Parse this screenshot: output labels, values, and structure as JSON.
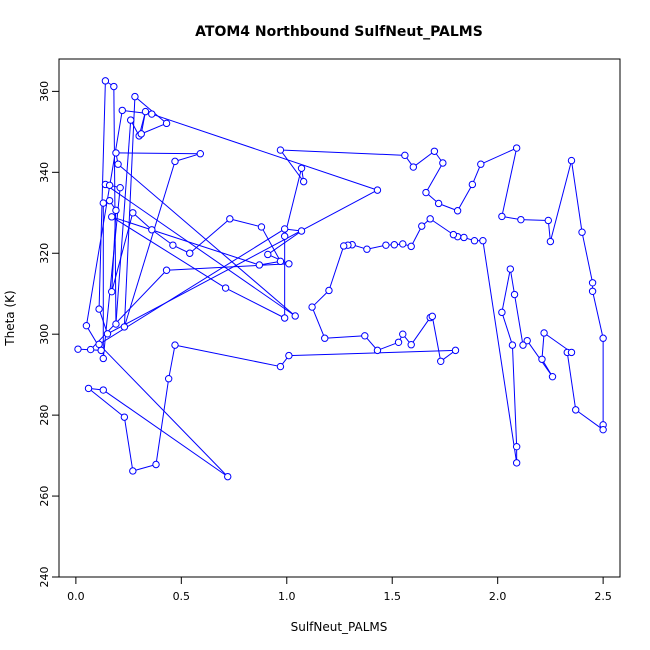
{
  "chart_data": {
    "type": "line",
    "title": "ATOM4 Northbound SulfNeut_PALMS",
    "xlabel": "SulfNeut_PALMS",
    "ylabel": "Theta (K)",
    "xlim": [
      -0.08,
      2.58
    ],
    "ylim": [
      240,
      368
    ],
    "x_ticks": [
      "0.0",
      "0.5",
      "1.0",
      "1.5",
      "2.0",
      "2.5"
    ],
    "y_ticks": [
      "240",
      "260",
      "280",
      "300",
      "320",
      "340",
      "360"
    ],
    "series_color": "#0000ff",
    "markers": "open-circle",
    "points": [
      [
        0.01,
        296.3
      ],
      [
        0.05,
        302.1
      ],
      [
        0.07,
        296.2
      ],
      [
        0.11,
        306.2
      ],
      [
        0.12,
        296.0
      ],
      [
        0.13,
        294.0
      ],
      [
        0.15,
        300.1
      ],
      [
        0.17,
        310.5
      ],
      [
        0.19,
        302.5
      ],
      [
        0.23,
        301.8
      ],
      [
        0.14,
        362.6
      ],
      [
        0.18,
        361.2
      ],
      [
        0.22,
        355.3
      ],
      [
        0.28,
        358.7
      ],
      [
        0.26,
        352.9
      ],
      [
        0.3,
        349.0
      ],
      [
        0.33,
        355.0
      ],
      [
        0.36,
        354.4
      ],
      [
        0.31,
        349.5
      ],
      [
        0.43,
        352.1
      ],
      [
        0.47,
        342.7
      ],
      [
        0.59,
        344.6
      ],
      [
        0.19,
        344.8
      ],
      [
        0.2,
        342.0
      ],
      [
        0.14,
        337.0
      ],
      [
        0.16,
        336.8
      ],
      [
        0.21,
        336.2
      ],
      [
        0.13,
        332.4
      ],
      [
        0.16,
        333.0
      ],
      [
        0.19,
        330.6
      ],
      [
        0.27,
        330.0
      ],
      [
        0.17,
        329.0
      ],
      [
        0.36,
        325.8
      ],
      [
        0.46,
        322.0
      ],
      [
        0.54,
        320.0
      ],
      [
        0.73,
        328.5
      ],
      [
        0.88,
        326.5
      ],
      [
        0.99,
        326.0
      ],
      [
        1.07,
        325.5
      ],
      [
        0.99,
        324.2
      ],
      [
        0.91,
        319.7
      ],
      [
        0.97,
        318.0
      ],
      [
        1.01,
        317.4
      ],
      [
        0.87,
        317.1
      ],
      [
        0.43,
        315.8
      ],
      [
        0.71,
        311.4
      ],
      [
        0.99,
        304.0
      ],
      [
        1.04,
        304.5
      ],
      [
        1.07,
        341.0
      ],
      [
        1.08,
        337.7
      ],
      [
        0.97,
        345.5
      ],
      [
        1.43,
        335.6
      ],
      [
        1.56,
        344.2
      ],
      [
        1.6,
        341.3
      ],
      [
        1.7,
        345.2
      ],
      [
        1.74,
        342.3
      ],
      [
        1.66,
        335.0
      ],
      [
        1.72,
        332.3
      ],
      [
        1.81,
        330.5
      ],
      [
        1.88,
        337.0
      ],
      [
        1.92,
        342.0
      ],
      [
        2.09,
        346.0
      ],
      [
        2.02,
        329.1
      ],
      [
        2.11,
        328.3
      ],
      [
        2.24,
        328.1
      ],
      [
        2.25,
        322.9
      ],
      [
        2.35,
        342.9
      ],
      [
        2.4,
        325.2
      ],
      [
        2.45,
        312.7
      ],
      [
        2.45,
        310.6
      ],
      [
        2.5,
        299.0
      ],
      [
        2.5,
        277.6
      ],
      [
        2.5,
        276.4
      ],
      [
        2.37,
        281.3
      ],
      [
        2.33,
        295.5
      ],
      [
        2.35,
        295.5
      ],
      [
        2.22,
        300.3
      ],
      [
        2.21,
        293.8
      ],
      [
        2.26,
        289.5
      ],
      [
        2.14,
        298.4
      ],
      [
        2.12,
        297.3
      ],
      [
        2.08,
        309.8
      ],
      [
        2.06,
        316.1
      ],
      [
        2.02,
        305.4
      ],
      [
        2.07,
        297.3
      ],
      [
        2.09,
        272.2
      ],
      [
        2.09,
        268.2
      ],
      [
        1.93,
        323.1
      ],
      [
        1.89,
        323.1
      ],
      [
        1.84,
        323.9
      ],
      [
        1.81,
        324.1
      ],
      [
        1.79,
        324.6
      ],
      [
        1.68,
        328.5
      ],
      [
        1.64,
        326.7
      ],
      [
        1.59,
        321.7
      ],
      [
        1.55,
        322.3
      ],
      [
        1.51,
        322.1
      ],
      [
        1.47,
        322.0
      ],
      [
        1.38,
        321.0
      ],
      [
        1.31,
        322.1
      ],
      [
        1.29,
        322.0
      ],
      [
        1.27,
        321.8
      ],
      [
        1.2,
        310.8
      ],
      [
        1.12,
        306.7
      ],
      [
        1.18,
        299.0
      ],
      [
        1.37,
        299.6
      ],
      [
        1.43,
        296.0
      ],
      [
        1.53,
        298.0
      ],
      [
        1.55,
        300.0
      ],
      [
        1.59,
        297.4
      ],
      [
        1.68,
        304.1
      ],
      [
        1.69,
        304.4
      ],
      [
        1.73,
        293.3
      ],
      [
        1.8,
        296.0
      ],
      [
        1.01,
        294.7
      ],
      [
        0.97,
        292.0
      ],
      [
        0.47,
        297.3
      ],
      [
        0.44,
        289.0
      ],
      [
        0.38,
        267.8
      ],
      [
        0.27,
        266.2
      ],
      [
        0.23,
        279.5
      ],
      [
        0.06,
        286.6
      ],
      [
        0.13,
        286.2
      ],
      [
        0.72,
        264.8
      ],
      [
        0.11,
        297.5
      ]
    ],
    "path_order": [
      0,
      4,
      1,
      12,
      17,
      51,
      6,
      3,
      10,
      11,
      8,
      14,
      15,
      16,
      18,
      19,
      13,
      9,
      20,
      21,
      22,
      23,
      47,
      24,
      25,
      26,
      5,
      27,
      28,
      29,
      7,
      30,
      32,
      33,
      34,
      35,
      36,
      41,
      43,
      31,
      45,
      46,
      39,
      48,
      49,
      50,
      52,
      53,
      54,
      55,
      56,
      57,
      58,
      59,
      60,
      61,
      62,
      63,
      64,
      65,
      66,
      67,
      68,
      69,
      70,
      71,
      72,
      73,
      74,
      75,
      76,
      77,
      78,
      79,
      80,
      81,
      82,
      83,
      84,
      85,
      86,
      87,
      88,
      89,
      90,
      91,
      92,
      93,
      94,
      95,
      96,
      97,
      98,
      99,
      100,
      101,
      102,
      103,
      104,
      105,
      106,
      107,
      108,
      109,
      110,
      111,
      112,
      113,
      114,
      115,
      116,
      117,
      118,
      119,
      120,
      121,
      122,
      123,
      124,
      37,
      38,
      40,
      42,
      44,
      2
    ]
  }
}
